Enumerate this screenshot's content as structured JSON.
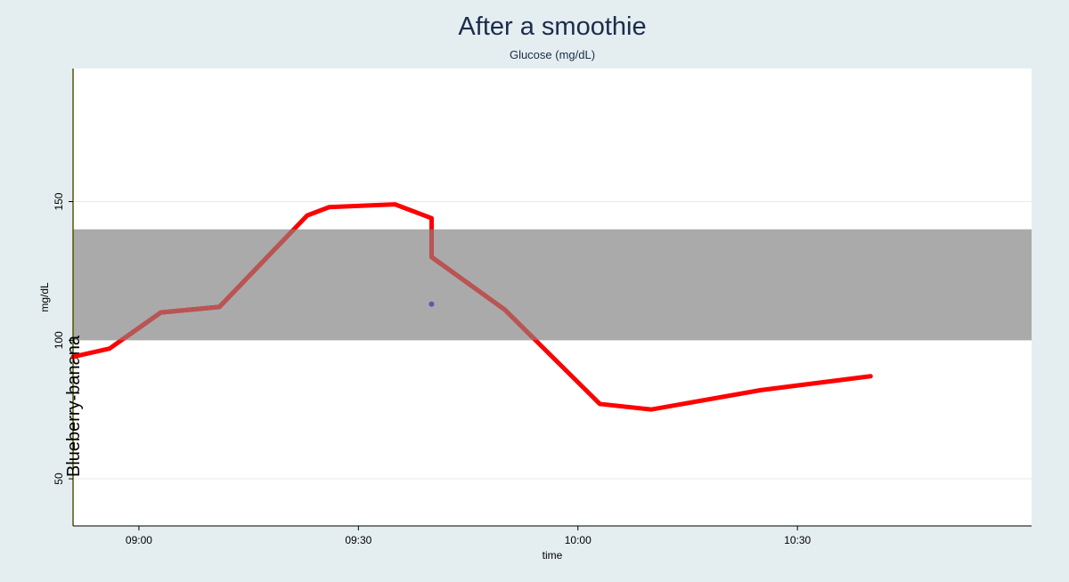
{
  "chart_data": {
    "type": "line",
    "title": "After a smoothie",
    "subtitle": "Glucose (mg/dL)",
    "xlabel": "time",
    "ylabel": "mg/dL",
    "xlim": [
      "08:51",
      "11:02"
    ],
    "ylim": [
      33,
      198
    ],
    "x_ticks": [
      "09:00",
      "09:30",
      "10:00",
      "10:30"
    ],
    "y_ticks": [
      50,
      100,
      150
    ],
    "grid": "horizontal",
    "target_range": {
      "low": 100,
      "high": 140,
      "color": "#aaaaaa"
    },
    "annotations": [
      {
        "time": "08:51",
        "label": "Blueberry-banana",
        "color": "#ffff00"
      }
    ],
    "series": [
      {
        "color": "#ff0000",
        "points": [
          [
            "08:51",
            94
          ],
          [
            "08:56",
            97
          ],
          [
            "09:03",
            110
          ],
          [
            "09:11",
            112
          ],
          [
            "09:23",
            145
          ],
          [
            "09:26",
            148
          ],
          [
            "09:35",
            149
          ],
          [
            "09:40",
            144
          ],
          [
            "09:40",
            130
          ],
          [
            "09:50",
            111
          ],
          [
            "10:03",
            77
          ],
          [
            "10:10",
            75
          ],
          [
            "10:25",
            82
          ],
          [
            "10:40",
            87
          ]
        ]
      }
    ],
    "markers": [
      {
        "time": "09:40",
        "value": 113,
        "color": "#5a5ab0"
      }
    ]
  }
}
